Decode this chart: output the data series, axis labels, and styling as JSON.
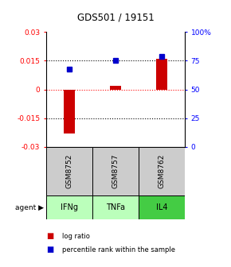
{
  "title": "GDS501 / 19151",
  "samples": [
    "GSM8752",
    "GSM8757",
    "GSM8762"
  ],
  "agents": [
    "IFNg",
    "TNFa",
    "IL4"
  ],
  "log_ratios": [
    -0.023,
    0.002,
    0.016
  ],
  "percentile_ranks": [
    68,
    75,
    79
  ],
  "ylim_left": [
    -0.03,
    0.03
  ],
  "ylim_right": [
    0,
    100
  ],
  "yticks_left": [
    -0.03,
    -0.015,
    0,
    0.015,
    0.03
  ],
  "yticks_right": [
    0,
    25,
    50,
    75,
    100
  ],
  "ytick_labels_left": [
    "-0.03",
    "-0.015",
    "0",
    "0.015",
    "0.03"
  ],
  "ytick_labels_right": [
    "0",
    "25",
    "50",
    "75",
    "100%"
  ],
  "hlines_dotted": [
    -0.015,
    0.015
  ],
  "hline_red": 0,
  "bar_color_red": "#cc0000",
  "bar_color_blue": "#0000cc",
  "sample_box_color": "#cccccc",
  "agent_colors": [
    "#bbffbb",
    "#bbffbb",
    "#44cc44"
  ],
  "legend_red": "log ratio",
  "legend_blue": "percentile rank within the sample",
  "bar_width": 0.25
}
